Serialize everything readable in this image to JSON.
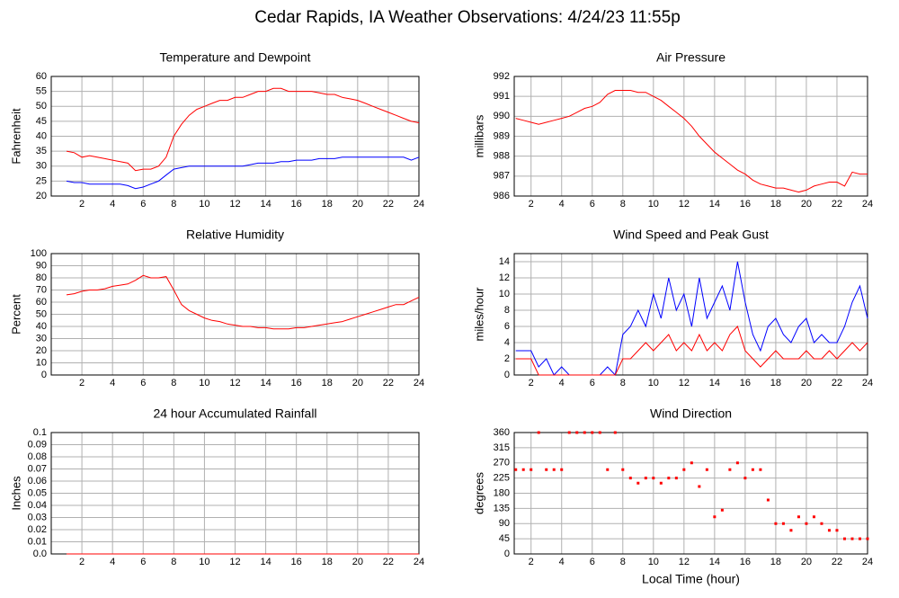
{
  "title": "Cedar Rapids, IA Weather Observations: 4/24/23 11:55p",
  "chart_data": [
    {
      "type": "line",
      "title": "Temperature and Dewpoint",
      "ylabel": "Fahrenheit",
      "x": [
        1,
        1.5,
        2,
        2.5,
        3,
        3.5,
        4,
        4.5,
        5,
        5.5,
        6,
        6.5,
        7,
        7.5,
        8,
        8.5,
        9,
        9.5,
        10,
        10.5,
        11,
        11.5,
        12,
        12.5,
        13,
        13.5,
        14,
        14.5,
        15,
        15.5,
        16,
        16.5,
        17,
        17.5,
        18,
        18.5,
        19,
        19.5,
        20,
        20.5,
        21,
        21.5,
        22,
        22.5,
        23,
        23.5,
        24
      ],
      "series": [
        {
          "color": "#ff0000",
          "values": [
            35,
            34.5,
            33,
            33.5,
            33,
            32.5,
            32,
            31.5,
            31,
            28.5,
            29,
            29,
            30,
            33,
            40,
            44,
            47,
            49,
            50,
            51,
            52,
            52,
            53,
            53,
            54,
            55,
            55,
            56,
            56,
            55,
            55,
            55,
            55,
            54.5,
            54,
            54,
            53,
            52.5,
            52,
            51,
            50,
            49,
            48,
            47,
            46,
            45,
            44.5
          ]
        },
        {
          "color": "#0000ff",
          "values": [
            25,
            24.5,
            24.5,
            24,
            24,
            24,
            24,
            24,
            23.5,
            22.5,
            23,
            24,
            25,
            27,
            29,
            29.5,
            30,
            30,
            30,
            30,
            30,
            30,
            30,
            30,
            30.5,
            31,
            31,
            31,
            31.5,
            31.5,
            32,
            32,
            32,
            32.5,
            32.5,
            32.5,
            33,
            33,
            33,
            33,
            33,
            33,
            33,
            33,
            33,
            32,
            33
          ]
        }
      ],
      "xlim": [
        0,
        24
      ],
      "xticks": [
        2,
        4,
        6,
        8,
        10,
        12,
        14,
        16,
        18,
        20,
        22,
        24
      ],
      "ylim": [
        20,
        60
      ],
      "yticks": [
        20,
        25,
        30,
        35,
        40,
        45,
        50,
        55,
        60
      ],
      "grid": true
    },
    {
      "type": "line",
      "title": "Air Pressure",
      "ylabel": "millibars",
      "x": [
        1,
        1.5,
        2,
        2.5,
        3,
        3.5,
        4,
        4.5,
        5,
        5.5,
        6,
        6.5,
        7,
        7.5,
        8,
        8.5,
        9,
        9.5,
        10,
        10.5,
        11,
        11.5,
        12,
        12.5,
        13,
        13.5,
        14,
        14.5,
        15,
        15.5,
        16,
        16.5,
        17,
        17.5,
        18,
        18.5,
        19,
        19.5,
        20,
        20.5,
        21,
        21.5,
        22,
        22.5,
        23,
        23.5,
        24
      ],
      "series": [
        {
          "color": "#ff0000",
          "values": [
            989.9,
            989.8,
            989.7,
            989.6,
            989.7,
            989.8,
            989.9,
            990.0,
            990.2,
            990.4,
            990.5,
            990.7,
            991.1,
            991.3,
            991.3,
            991.3,
            991.2,
            991.2,
            991.0,
            990.8,
            990.5,
            990.2,
            989.9,
            989.5,
            989.0,
            988.6,
            988.2,
            987.9,
            987.6,
            987.3,
            987.1,
            986.8,
            986.6,
            986.5,
            986.4,
            986.4,
            986.3,
            986.2,
            986.3,
            986.5,
            986.6,
            986.7,
            986.7,
            986.5,
            987.2,
            987.1,
            987.1
          ]
        }
      ],
      "xlim": [
        0.9,
        24
      ],
      "xticks": [
        2,
        4,
        6,
        8,
        10,
        12,
        14,
        16,
        18,
        20,
        22,
        24
      ],
      "ylim": [
        986,
        992
      ],
      "yticks": [
        986,
        987,
        988,
        989,
        990,
        991,
        992
      ],
      "grid": true
    },
    {
      "type": "line",
      "title": "Relative Humidity",
      "ylabel": "Percent",
      "x": [
        1,
        1.5,
        2,
        2.5,
        3,
        3.5,
        4,
        4.5,
        5,
        5.5,
        6,
        6.5,
        7,
        7.5,
        8,
        8.5,
        9,
        9.5,
        10,
        10.5,
        11,
        11.5,
        12,
        12.5,
        13,
        13.5,
        14,
        14.5,
        15,
        15.5,
        16,
        16.5,
        17,
        17.5,
        18,
        18.5,
        19,
        19.5,
        20,
        20.5,
        21,
        21.5,
        22,
        22.5,
        23,
        23.5,
        24
      ],
      "series": [
        {
          "color": "#ff0000",
          "values": [
            66,
            67,
            69,
            70,
            70,
            71,
            73,
            74,
            75,
            78,
            82,
            80,
            80,
            81,
            70,
            58,
            53,
            50,
            47,
            45,
            44,
            42,
            41,
            40,
            40,
            39,
            39,
            38,
            38,
            38,
            39,
            39,
            40,
            41,
            42,
            43,
            44,
            46,
            48,
            50,
            52,
            54,
            56,
            58,
            58,
            61,
            64
          ]
        }
      ],
      "xlim": [
        0,
        24
      ],
      "xticks": [
        2,
        4,
        6,
        8,
        10,
        12,
        14,
        16,
        18,
        20,
        22,
        24
      ],
      "ylim": [
        0,
        100
      ],
      "yticks": [
        0,
        10,
        20,
        30,
        40,
        50,
        60,
        70,
        80,
        90,
        100
      ],
      "grid": true
    },
    {
      "type": "line",
      "title": "Wind Speed and Peak Gust",
      "ylabel": "miles/hour",
      "x": [
        1,
        1.5,
        2,
        2.5,
        3,
        3.5,
        4,
        4.5,
        5,
        5.5,
        6,
        6.5,
        7,
        7.5,
        8,
        8.5,
        9,
        9.5,
        10,
        10.5,
        11,
        11.5,
        12,
        12.5,
        13,
        13.5,
        14,
        14.5,
        15,
        15.5,
        16,
        16.5,
        17,
        17.5,
        18,
        18.5,
        19,
        19.5,
        20,
        20.5,
        21,
        21.5,
        22,
        22.5,
        23,
        23.5,
        24
      ],
      "series": [
        {
          "color": "#0000ff",
          "values": [
            3,
            3,
            3,
            1,
            2,
            0,
            1,
            0,
            0,
            0,
            0,
            0,
            1,
            0,
            5,
            6,
            8,
            6,
            10,
            7,
            12,
            8,
            10,
            6,
            12,
            7,
            9,
            11,
            8,
            14,
            9,
            5,
            3,
            6,
            7,
            5,
            4,
            6,
            7,
            4,
            5,
            4,
            4,
            6,
            9,
            11,
            7
          ]
        },
        {
          "color": "#ff0000",
          "values": [
            2,
            2,
            2,
            0,
            0,
            0,
            0,
            0,
            0,
            0,
            0,
            0,
            0,
            0,
            2,
            2,
            3,
            4,
            3,
            4,
            5,
            3,
            4,
            3,
            5,
            3,
            4,
            3,
            5,
            6,
            3,
            2,
            1,
            2,
            3,
            2,
            2,
            2,
            3,
            2,
            2,
            3,
            2,
            3,
            4,
            3,
            4
          ]
        }
      ],
      "xlim": [
        0.9,
        24
      ],
      "xticks": [
        2,
        4,
        6,
        8,
        10,
        12,
        14,
        16,
        18,
        20,
        22,
        24
      ],
      "ylim": [
        0,
        15
      ],
      "yticks": [
        0,
        2,
        4,
        6,
        8,
        10,
        12,
        14
      ],
      "grid": true
    },
    {
      "type": "line",
      "title": "24 hour Accumulated Rainfall",
      "ylabel": "Inches",
      "x": [
        1,
        24
      ],
      "series": [
        {
          "color": "#ff0000",
          "values": [
            0,
            0
          ]
        }
      ],
      "xlim": [
        0,
        24
      ],
      "xticks": [
        2,
        4,
        6,
        8,
        10,
        12,
        14,
        16,
        18,
        20,
        22,
        24
      ],
      "ylim": [
        0,
        0.1
      ],
      "yticks": [
        {
          "value": 0,
          "label": "0.0"
        },
        0.01,
        0.02,
        0.03,
        0.04,
        0.05,
        0.06,
        0.07,
        0.08,
        0.09,
        0.1
      ],
      "grid": true
    },
    {
      "type": "scatter",
      "title": "Wind Direction",
      "ylabel": "degrees",
      "xlabel": "Local Time (hour)",
      "x": [
        1,
        1.5,
        2,
        2.5,
        3,
        3.5,
        4,
        4.5,
        5,
        5.5,
        6,
        6.5,
        7,
        7.5,
        8,
        8.5,
        9,
        9.5,
        10,
        10.5,
        11,
        11.5,
        12,
        12.5,
        13,
        13.5,
        14,
        14.5,
        15,
        15.5,
        16,
        16.5,
        17,
        17.5,
        18,
        18.5,
        19,
        19.5,
        20,
        20.5,
        21,
        21.5,
        22,
        22.5,
        23,
        23.5,
        24
      ],
      "series": [
        {
          "color": "#ff0000",
          "values": [
            250,
            250,
            250,
            360,
            250,
            250,
            250,
            360,
            360,
            360,
            360,
            360,
            250,
            360,
            250,
            225,
            210,
            225,
            225,
            210,
            225,
            225,
            250,
            270,
            200,
            250,
            110,
            130,
            250,
            270,
            225,
            250,
            250,
            160,
            90,
            90,
            70,
            110,
            90,
            110,
            90,
            70,
            70,
            45,
            45,
            45,
            45
          ]
        }
      ],
      "xlim": [
        0.9,
        24
      ],
      "xticks": [
        2,
        4,
        6,
        8,
        10,
        12,
        14,
        16,
        18,
        20,
        22,
        24
      ],
      "ylim": [
        0,
        360
      ],
      "yticks": [
        0,
        45,
        90,
        135,
        180,
        225,
        270,
        315,
        360
      ],
      "grid": true
    }
  ]
}
